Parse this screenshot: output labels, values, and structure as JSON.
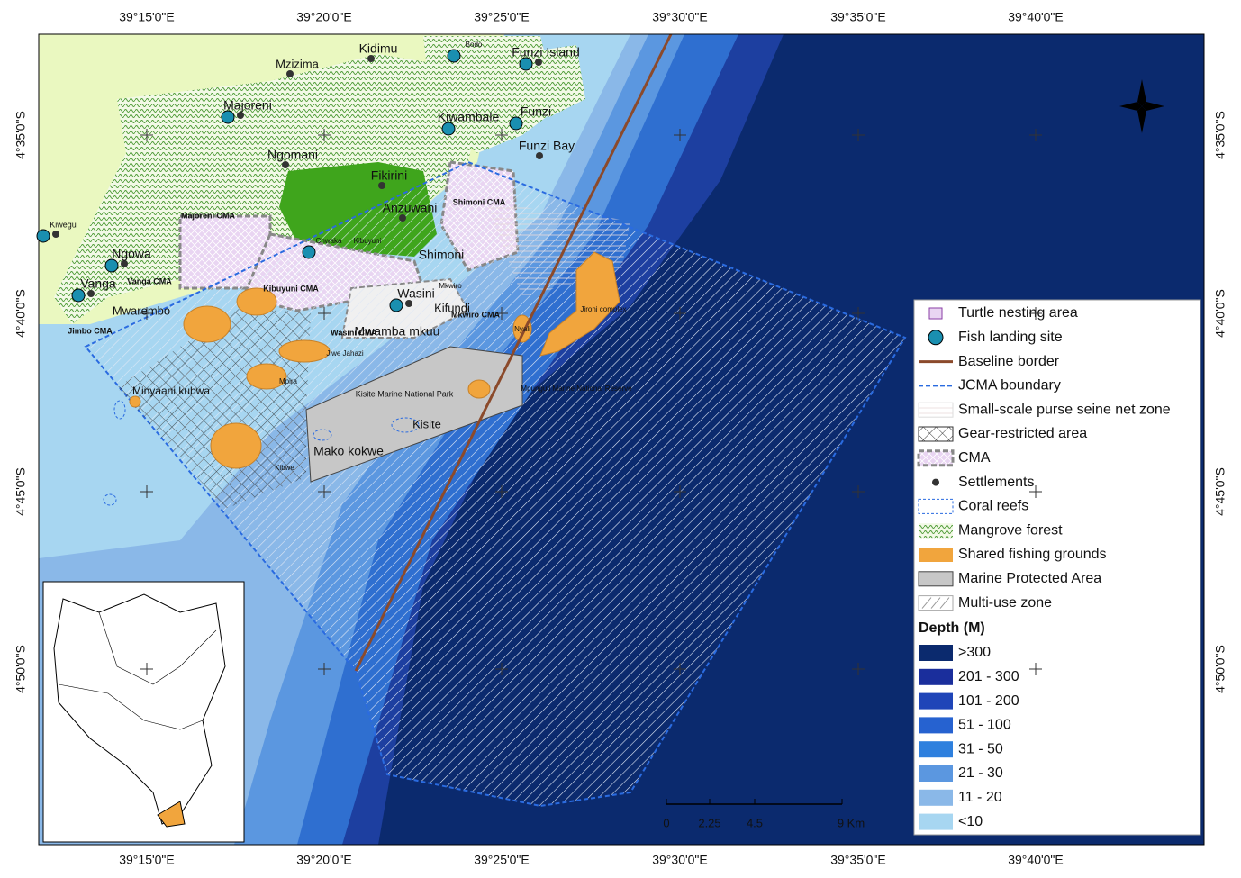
{
  "map": {
    "lon_labels": [
      "39°15'0\"E",
      "39°20'0\"E",
      "39°25'0\"E",
      "39°30'0\"E",
      "39°35'0\"E",
      "39°40'0\"E"
    ],
    "lat_labels": [
      "4°35'0\"S",
      "4°40'0\"S",
      "4°45'0\"S",
      "4°50'0\"S"
    ],
    "places": [
      "Kidimu",
      "Mzizima",
      "Majoreni",
      "Ngomani",
      "Fikirini",
      "Anzuwani",
      "Kiwambale",
      "Funzi Island",
      "Funzi",
      "Funzi Bay",
      "Bodo",
      "Shimoni",
      "Wasini",
      "Kifundi",
      "Mkwiro",
      "Ngowa",
      "Vanga",
      "Mwarembo",
      "Mwamba mkuu",
      "Jiwe Jahazi",
      "Kisite Marine National Park",
      "Kisite",
      "Mako kokwe",
      "Minyaani kubwa",
      "Mpunguti Marine National Reserve",
      "Jironi complex",
      "Nyali",
      "Kiwegu",
      "Chwaka",
      "Kibuyuni",
      "Mpira",
      "Kibwe"
    ],
    "cma_labels": [
      "Majoreni CMA",
      "Vanga CMA",
      "Kibuyuni CMA",
      "Shimoni CMA",
      "Jimbo CMA",
      "Wasini CMA",
      "Mkwiro CMA"
    ],
    "legend": {
      "items": [
        "Turtle nesting area",
        "Fish landing site",
        "Baseline border",
        "JCMA boundary",
        "Small-scale purse seine net zone",
        "Gear-restricted area",
        "CMA",
        "Settlements",
        "Coral reefs",
        "Mangrove forest",
        "Shared fishing grounds",
        "Marine Protected Area",
        "Multi-use zone"
      ],
      "depth_title": "Depth (M)",
      "depth_classes": [
        ">300",
        "201 - 300",
        "101 - 200",
        "51 - 100",
        "31 - 50",
        "21 - 30",
        "11 - 20",
        "<10"
      ]
    },
    "scale_bar": [
      "0",
      "2.25",
      "4.5",
      "9 Km"
    ]
  }
}
